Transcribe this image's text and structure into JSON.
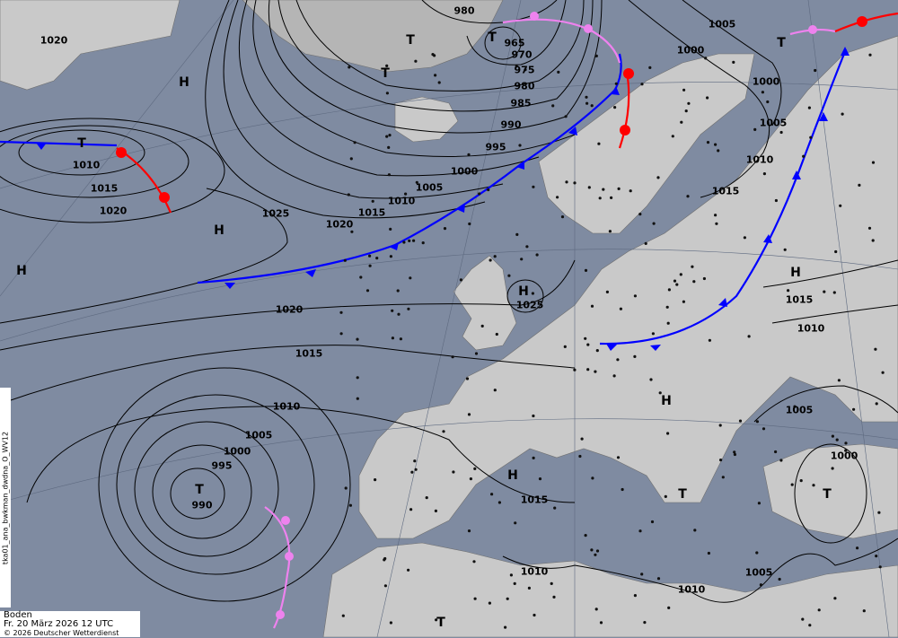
{
  "map": {
    "product_code": "tka01_ana_bwkman_dwdna_O_WV12",
    "level": "Boden",
    "valid_time": "Fr. 20 März 2026 12 UTC",
    "copyright": "© 2026 Deutscher Wetterdienst",
    "colors": {
      "sea": "#7f8ba1",
      "land": "#c9c9c9",
      "isobar": "#000000",
      "cold_front": "#0000ff",
      "warm_front": "#ff0000",
      "occlusion": "#ee82ee"
    },
    "isobar_labels": [
      "1020",
      "980",
      "965",
      "970",
      "975",
      "980",
      "985",
      "990",
      "995",
      "1000",
      "1005",
      "1010",
      "1015",
      "1020",
      "1025",
      "1010",
      "1015",
      "1020",
      "1000",
      "1005",
      "1000",
      "1005",
      "1010",
      "1015",
      "1025",
      "1020",
      "1015",
      "1010",
      "1005",
      "1000",
      "995",
      "990",
      "1015",
      "1010",
      "1010",
      "1005",
      "1015",
      "1010",
      "1005",
      "1000"
    ],
    "pressure_centers": [
      "H",
      "T",
      "H",
      "H",
      "T",
      "T",
      "T",
      "H",
      "H",
      "H",
      "T",
      "T",
      "T",
      "T",
      "H",
      "T"
    ]
  }
}
